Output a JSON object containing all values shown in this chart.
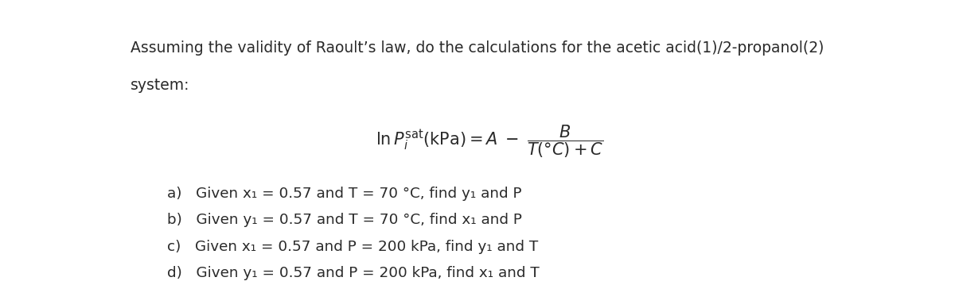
{
  "title_line1": "Assuming the validity of Raoult’s law, do the calculations for the acetic acid(1)/2-propanol(2)",
  "title_line2": "system:",
  "bg_color": "#ffffff",
  "text_color": "#2a2a2a",
  "fig_width": 12.0,
  "fig_height": 3.59,
  "dpi": 100,
  "title_fontsize": 13.5,
  "eq_fontsize": 15,
  "items_fontsize": 13.2,
  "item_a": "a)   Given x₁ = 0.57 and T = 70 °C, find y₁ and P",
  "item_b": "b)   Given y₁ = 0.57 and T = 70 °C, find x₁ and P",
  "item_c": "c)   Given x₁ = 0.57 and P = 200 kPa, find y₁ and T",
  "item_d": "d)   Given y₁ = 0.57 and P = 200 kPa, find x₁ and T"
}
